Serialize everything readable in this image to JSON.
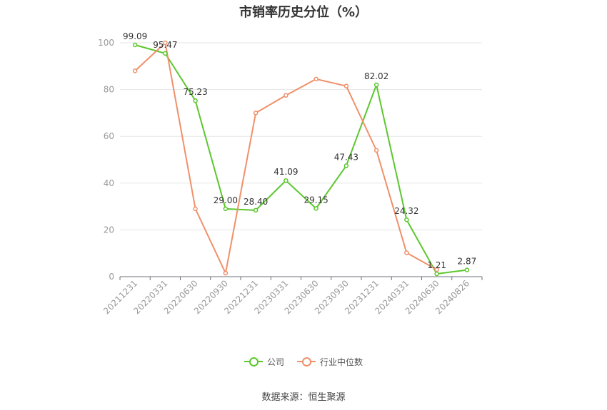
{
  "chart_data": {
    "type": "line",
    "title": "市销率历史分位（%）",
    "categories": [
      "20211231",
      "20220331",
      "20220630",
      "20220930",
      "20221231",
      "20230331",
      "20230630",
      "20230930",
      "20231231",
      "20240331",
      "20240630",
      "20240826"
    ],
    "series": [
      {
        "name": "公司",
        "color": "#5cc72e",
        "values": [
          99.09,
          95.47,
          75.23,
          29.0,
          28.4,
          41.09,
          29.15,
          47.43,
          82.02,
          24.32,
          1.21,
          2.87
        ],
        "labels": [
          "99.09",
          "95.47",
          "75.23",
          "29.00",
          "28.40",
          "41.09",
          "29.15",
          "47.43",
          "82.02",
          "24.32",
          "1.21",
          "2.87"
        ]
      },
      {
        "name": "行业中位数",
        "color": "#f0906a",
        "values": [
          88.0,
          100.0,
          29.0,
          1.5,
          70.0,
          77.5,
          84.5,
          81.5,
          54.0,
          10.2,
          3.0,
          null
        ]
      }
    ],
    "yticks": [
      "0",
      "20",
      "40",
      "60",
      "80",
      "100"
    ],
    "ylim": [
      0,
      100
    ],
    "grid": true,
    "legend_position": "bottom"
  },
  "source": "数据来源：恒生聚源"
}
